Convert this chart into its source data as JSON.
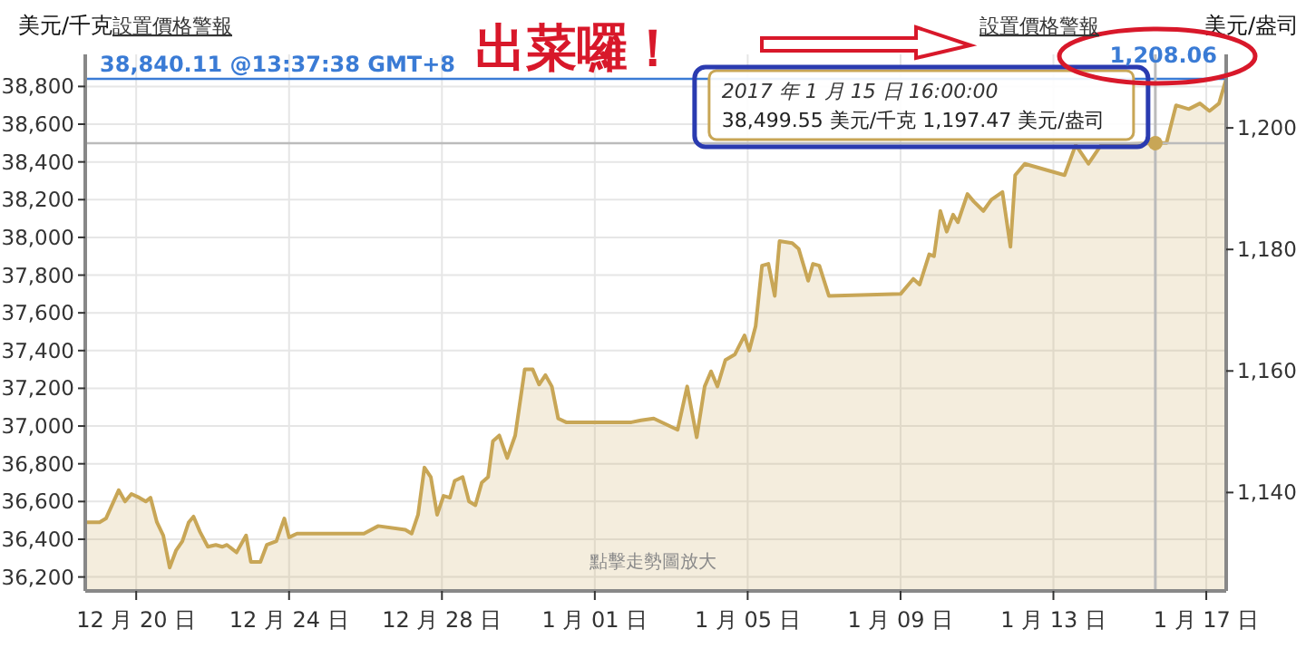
{
  "chart_data": {
    "type": "area",
    "ylabel": "美元/千克",
    "y2label": "美元/盎司",
    "xlim": [
      "2016-12-18T16:00",
      "2017-01-17T12:30"
    ],
    "ylim": [
      36126,
      38970
    ],
    "y2lim": [
      1123.8,
      1212.1
    ],
    "xticks": [
      {
        "value": "2016-12-20",
        "label": "12 月 20 日"
      },
      {
        "value": "2016-12-24",
        "label": "12 月 24 日"
      },
      {
        "value": "2016-12-28",
        "label": "12 月 28 日"
      },
      {
        "value": "2017-01-01",
        "label": "1 月 01 日"
      },
      {
        "value": "2017-01-05",
        "label": "1 月 05 日"
      },
      {
        "value": "2017-01-09",
        "label": "1 月 09 日"
      },
      {
        "value": "2017-01-13",
        "label": "1 月 13 日"
      },
      {
        "value": "2017-01-17",
        "label": "1 月 17 日"
      }
    ],
    "yticks": [
      {
        "value": 36200,
        "label": "36,200"
      },
      {
        "value": 36400,
        "label": "36,400"
      },
      {
        "value": 36600,
        "label": "36,600"
      },
      {
        "value": 36800,
        "label": "36,800"
      },
      {
        "value": 37000,
        "label": "37,000"
      },
      {
        "value": 37200,
        "label": "37,200"
      },
      {
        "value": 37400,
        "label": "37,400"
      },
      {
        "value": 37600,
        "label": "37,600"
      },
      {
        "value": 37800,
        "label": "37,800"
      },
      {
        "value": 38000,
        "label": "38,000"
      },
      {
        "value": 38200,
        "label": "38,200"
      },
      {
        "value": 38400,
        "label": "38,400"
      },
      {
        "value": 38600,
        "label": "38,600"
      },
      {
        "value": 38800,
        "label": "38,800"
      }
    ],
    "y2ticks": [
      {
        "value": 1140,
        "label": "1,140"
      },
      {
        "value": 1160,
        "label": "1,160"
      },
      {
        "value": 1180,
        "label": "1,180"
      },
      {
        "value": 1200,
        "label": "1,200"
      }
    ],
    "grid": true,
    "series": [
      {
        "color": "#c8a656",
        "x": [
          "2016-12-18T16:00",
          "2016-12-19T01:00",
          "2016-12-19T05:00",
          "2016-12-19T13:00",
          "2016-12-19T17:00",
          "2016-12-19T21:00",
          "2016-12-20T02:00",
          "2016-12-20T06:00",
          "2016-12-20T09:00",
          "2016-12-20T13:00",
          "2016-12-20T17:00",
          "2016-12-20T21:00",
          "2016-12-21T01:00",
          "2016-12-21T05:00",
          "2016-12-21T09:00",
          "2016-12-21T12:00",
          "2016-12-21T16:00",
          "2016-12-21T21:00",
          "2016-12-22T02:00",
          "2016-12-22T06:00",
          "2016-12-22T09:00",
          "2016-12-22T15:00",
          "2016-12-22T21:00",
          "2016-12-23T00:00",
          "2016-12-23T06:00",
          "2016-12-23T10:00",
          "2016-12-23T16:00",
          "2016-12-23T21:00",
          "2016-12-24T00:00",
          "2016-12-24T05:00",
          "2016-12-25T23:00",
          "2016-12-26T08:00",
          "2016-12-27T01:00",
          "2016-12-27T05:00",
          "2016-12-27T09:00",
          "2016-12-27T13:00",
          "2016-12-27T17:00",
          "2016-12-27T21:00",
          "2016-12-28T01:00",
          "2016-12-28T05:00",
          "2016-12-28T08:00",
          "2016-12-28T13:00",
          "2016-12-28T17:00",
          "2016-12-28T21:00",
          "2016-12-29T01:00",
          "2016-12-29T05:00",
          "2016-12-29T08:00",
          "2016-12-29T12:00",
          "2016-12-29T17:00",
          "2016-12-29T22:00",
          "2016-12-30T04:00",
          "2016-12-30T09:00",
          "2016-12-30T13:00",
          "2016-12-30T17:00",
          "2016-12-30T21:00",
          "2016-12-31T01:00",
          "2016-12-31T06:00",
          "2017-01-01T23:00",
          "2017-01-02T05:00",
          "2017-01-02T13:00",
          "2017-01-03T04:00",
          "2017-01-03T10:00",
          "2017-01-03T16:00",
          "2017-01-03T21:00",
          "2017-01-04T01:00",
          "2017-01-04T05:00",
          "2017-01-04T10:00",
          "2017-01-04T16:00",
          "2017-01-04T22:00",
          "2017-01-05T01:00",
          "2017-01-05T05:00",
          "2017-01-05T09:00",
          "2017-01-05T13:00",
          "2017-01-05T17:00",
          "2017-01-05T20:00",
          "2017-01-06T04:00",
          "2017-01-06T08:00",
          "2017-01-06T14:00",
          "2017-01-06T17:00",
          "2017-01-06T21:00",
          "2017-01-07T03:00",
          "2017-01-09T00:00",
          "2017-01-09T08:00",
          "2017-01-09T12:00",
          "2017-01-09T18:00",
          "2017-01-09T21:00",
          "2017-01-10T01:00",
          "2017-01-10T05:00",
          "2017-01-10T09:00",
          "2017-01-10T12:00",
          "2017-01-10T18:00",
          "2017-01-10T22:00",
          "2017-01-11T04:00",
          "2017-01-11T09:00",
          "2017-01-11T16:00",
          "2017-01-11T21:00",
          "2017-01-12T00:00",
          "2017-01-12T06:00",
          "2017-01-13T07:00",
          "2017-01-13T14:00",
          "2017-01-13T22:00",
          "2017-01-14T06:00",
          "2017-01-15T16:00",
          "2017-01-15T23:00",
          "2017-01-16T05:00",
          "2017-01-16T13:00",
          "2017-01-16T20:00",
          "2017-01-17T02:00",
          "2017-01-17T08:00",
          "2017-01-17T12:30"
        ],
        "values": [
          36490,
          36490,
          36510,
          36660,
          36600,
          36640,
          36620,
          36600,
          36620,
          36490,
          36420,
          36250,
          36340,
          36390,
          36490,
          36520,
          36440,
          36360,
          36370,
          36360,
          36370,
          36330,
          36420,
          36280,
          36280,
          36370,
          36390,
          36510,
          36410,
          36430,
          36430,
          36470,
          36450,
          36430,
          36530,
          36780,
          36730,
          36530,
          36630,
          36620,
          36710,
          36730,
          36600,
          36580,
          36700,
          36730,
          36920,
          36950,
          36830,
          36950,
          37300,
          37300,
          37220,
          37270,
          37210,
          37040,
          37020,
          37020,
          37030,
          37040,
          36980,
          37210,
          36940,
          37210,
          37290,
          37210,
          37350,
          37380,
          37480,
          37400,
          37530,
          37850,
          37860,
          37690,
          37980,
          37970,
          37940,
          37770,
          37860,
          37850,
          37690,
          37700,
          37780,
          37750,
          37910,
          37900,
          38140,
          38030,
          38120,
          38080,
          38230,
          38190,
          38140,
          38200,
          38240,
          37950,
          38330,
          38390,
          38330,
          38490,
          38390,
          38490,
          38500,
          38500,
          38700,
          38680,
          38710,
          38670,
          38710,
          38840
        ]
      }
    ],
    "ref_lines": [
      {
        "axis": "y",
        "value": 38840.11,
        "label": "38,840.11 @13:37:38 GMT+8",
        "color": "#3a7bd5"
      },
      {
        "axis": "x",
        "value": "2017-01-15T16:00",
        "color": "#bbbbbb"
      },
      {
        "axis": "y",
        "value": 38499.55,
        "color": "#bbbbbb"
      }
    ],
    "annotations": [
      {
        "text": "2017 年 1 月 15 日 16:00:00\n38,499.55 美元/千克  1,197.47 美元/盎司",
        "x": "2017-01-15T16:00",
        "y": 38499.55
      },
      "出菜囉！",
      "設置價格警報",
      "設置價格警報",
      "點擊走勢圖放大",
      "1,208.06"
    ]
  }
}
